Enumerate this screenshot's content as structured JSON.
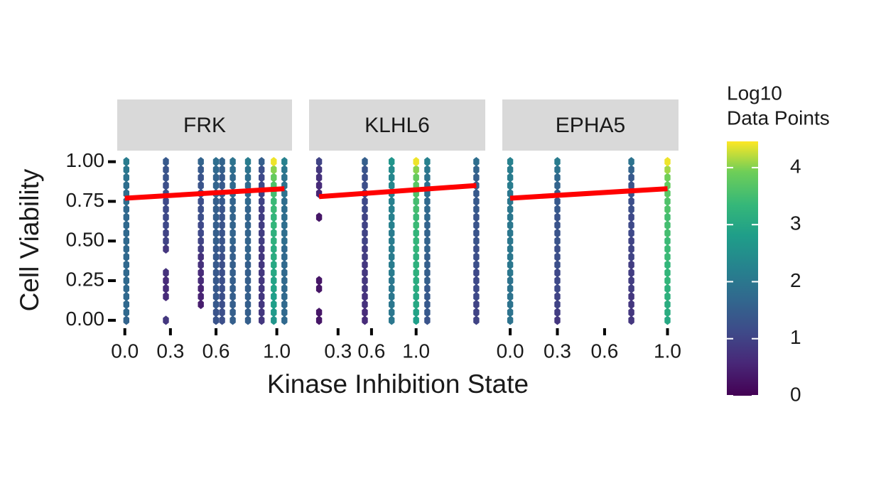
{
  "chart_data": [
    {
      "type": "hexbin",
      "title": "FRK",
      "xlim": [
        -0.05,
        1.1
      ],
      "ylim": [
        -0.05,
        1.07
      ],
      "xticks": [
        {
          "value": 0,
          "label": "0.0"
        },
        0.3,
        0.6,
        {
          "value": 1,
          "label": "1.0"
        }
      ],
      "yticks": [
        {
          "value": 0,
          "label": "0.00"
        },
        {
          "value": 0.25,
          "label": "0.25"
        },
        {
          "value": 0.5,
          "label": "0.50"
        },
        {
          "value": 0.75,
          "label": "0.75"
        },
        {
          "value": 1,
          "label": "1.00"
        }
      ],
      "y_bins": [
        0,
        0.05,
        0.1,
        0.15,
        0.2,
        0.25,
        0.3,
        0.35,
        0.4,
        0.45,
        0.5,
        0.55,
        0.6,
        0.65,
        0.7,
        0.75,
        0.8,
        0.85,
        0.9,
        0.95,
        1
      ],
      "columns": [
        {
          "x": 0.01,
          "values": [
            1.6,
            1.7,
            1.7,
            1.7,
            1.7,
            1.7,
            1.7,
            1.7,
            1.7,
            1.7,
            1.7,
            1.7,
            1.7,
            1.7,
            1.7,
            1.8,
            1.8,
            1.8,
            1.9,
            2.0,
            2.1
          ]
        },
        {
          "x": 0.27,
          "values": [
            0.8,
            null,
            null,
            0.6,
            0.6,
            0.6,
            0.7,
            null,
            null,
            0.8,
            1.0,
            1.0,
            1.1,
            1.1,
            1.1,
            1.1,
            1.2,
            1.2,
            1.3,
            1.3,
            1.4
          ]
        },
        {
          "x": 0.5,
          "values": [
            null,
            null,
            0.4,
            0.5,
            0.5,
            0.6,
            0.6,
            0.7,
            0.7,
            0.9,
            1.0,
            1.1,
            1.1,
            1.2,
            1.2,
            1.2,
            1.3,
            1.3,
            1.3,
            1.4,
            1.6
          ]
        },
        {
          "x": 0.6,
          "values": [
            1.3,
            1.3,
            1.4,
            1.4,
            1.4,
            1.4,
            1.4,
            1.4,
            1.4,
            1.4,
            1.5,
            1.5,
            1.5,
            1.5,
            1.5,
            1.5,
            1.6,
            1.6,
            1.6,
            1.7,
            1.8
          ]
        },
        {
          "x": 0.64,
          "values": [
            1.2,
            1.2,
            1.2,
            1.2,
            1.2,
            1.2,
            1.2,
            1.2,
            1.2,
            1.3,
            1.3,
            1.3,
            1.3,
            1.3,
            1.3,
            1.4,
            1.4,
            1.4,
            1.4,
            1.5,
            1.6
          ]
        },
        {
          "x": 0.71,
          "values": [
            1.5,
            1.5,
            1.5,
            1.5,
            1.5,
            1.5,
            1.5,
            1.5,
            1.5,
            1.5,
            1.6,
            1.6,
            1.6,
            1.6,
            1.6,
            1.6,
            1.7,
            1.7,
            1.7,
            1.8,
            1.9
          ]
        },
        {
          "x": 0.81,
          "values": [
            1.5,
            1.5,
            1.5,
            1.5,
            1.5,
            1.5,
            1.5,
            1.5,
            1.6,
            1.6,
            1.6,
            1.6,
            1.6,
            1.6,
            1.6,
            1.7,
            1.7,
            1.7,
            1.8,
            1.9,
            2.1
          ]
        },
        {
          "x": 0.9,
          "values": [
            0.8,
            0.8,
            0.8,
            0.8,
            0.8,
            0.8,
            0.8,
            0.8,
            0.8,
            0.8,
            0.9,
            0.9,
            0.9,
            0.9,
            0.9,
            1.0,
            1.0,
            1.1,
            1.1,
            1.2,
            1.5
          ]
        },
        {
          "x": 0.98,
          "values": [
            2.6,
            2.7,
            2.8,
            2.8,
            2.9,
            2.9,
            3.0,
            3.0,
            3.1,
            3.1,
            3.2,
            3.2,
            3.3,
            3.3,
            3.4,
            3.4,
            3.5,
            3.6,
            3.8,
            4.0,
            4.4
          ]
        },
        {
          "x": 1.05,
          "values": [
            1.7,
            1.7,
            1.7,
            1.7,
            1.7,
            1.7,
            1.7,
            1.7,
            1.7,
            1.7,
            1.8,
            1.8,
            1.8,
            1.8,
            1.8,
            1.8,
            1.9,
            1.9,
            1.9,
            2.0,
            2.2
          ]
        }
      ],
      "trend": {
        "color": "#ff0000",
        "x": [
          0,
          1.05
        ],
        "y": [
          0.77,
          0.83
        ]
      }
    },
    {
      "type": "hexbin",
      "title": "KLHL6",
      "xlim": [
        0.04,
        1.62
      ],
      "ylim": [
        -0.05,
        1.07
      ],
      "xticks": [
        0.3,
        0.6,
        {
          "value": 1,
          "label": "1.0"
        }
      ],
      "y_bins": [
        0,
        0.05,
        0.1,
        0.15,
        0.2,
        0.25,
        0.3,
        0.35,
        0.4,
        0.45,
        0.5,
        0.55,
        0.6,
        0.65,
        0.7,
        0.75,
        0.8,
        0.85,
        0.9,
        0.95,
        1
      ],
      "columns": [
        {
          "x": 0.13,
          "values": [
            0.3,
            0.3,
            null,
            null,
            0.3,
            0.3,
            null,
            null,
            null,
            null,
            null,
            null,
            null,
            0.3,
            null,
            null,
            0.5,
            0.6,
            0.7,
            0.8,
            1.0
          ]
        },
        {
          "x": 0.54,
          "values": [
            0.6,
            0.6,
            0.7,
            0.7,
            0.8,
            0.8,
            0.8,
            0.8,
            0.9,
            0.9,
            1.0,
            1.0,
            1.0,
            1.0,
            1.1,
            1.1,
            1.1,
            1.2,
            1.2,
            1.3,
            1.5
          ]
        },
        {
          "x": 0.78,
          "values": [
            2.0,
            2.0,
            2.0,
            2.0,
            2.0,
            2.0,
            2.1,
            2.1,
            2.1,
            2.1,
            2.1,
            2.1,
            2.2,
            2.2,
            2.2,
            2.2,
            2.2,
            2.3,
            2.3,
            2.4,
            2.6
          ]
        },
        {
          "x": 1.0,
          "values": [
            2.8,
            2.9,
            3.0,
            3.0,
            3.1,
            3.1,
            3.2,
            3.2,
            3.2,
            3.3,
            3.3,
            3.3,
            3.4,
            3.4,
            3.5,
            3.5,
            3.6,
            3.7,
            3.8,
            4.0,
            4.4
          ]
        },
        {
          "x": 1.1,
          "values": [
            1.3,
            1.4,
            1.4,
            1.4,
            1.4,
            1.5,
            1.5,
            1.5,
            1.5,
            1.6,
            1.6,
            1.6,
            1.6,
            1.7,
            1.7,
            1.7,
            1.8,
            1.8,
            1.9,
            2.0,
            2.2
          ]
        },
        {
          "x": 1.54,
          "values": [
            1.0,
            1.0,
            1.0,
            1.1,
            1.1,
            1.1,
            1.1,
            1.2,
            1.2,
            1.2,
            1.3,
            1.3,
            1.3,
            1.3,
            1.4,
            1.4,
            1.4,
            1.5,
            1.5,
            1.6,
            1.8
          ]
        }
      ],
      "trend": {
        "color": "#ff0000",
        "x": [
          0.13,
          1.54
        ],
        "y": [
          0.78,
          0.85
        ]
      }
    },
    {
      "type": "hexbin",
      "title": "EPHA5",
      "xlim": [
        -0.05,
        1.07
      ],
      "ylim": [
        -0.05,
        1.07
      ],
      "xticks": [
        {
          "value": 0,
          "label": "0.0"
        },
        0.3,
        0.6,
        {
          "value": 1,
          "label": "1.0"
        }
      ],
      "y_bins": [
        0,
        0.05,
        0.1,
        0.15,
        0.2,
        0.25,
        0.3,
        0.35,
        0.4,
        0.45,
        0.5,
        0.55,
        0.6,
        0.65,
        0.7,
        0.75,
        0.8,
        0.85,
        0.9,
        0.95,
        1
      ],
      "columns": [
        {
          "x": 0,
          "values": [
            1.9,
            1.9,
            1.9,
            1.9,
            1.9,
            1.9,
            2.0,
            2.0,
            2.0,
            2.0,
            2.0,
            2.0,
            2.0,
            2.0,
            2.0,
            2.0,
            2.0,
            2.1,
            2.1,
            2.1,
            2.2
          ]
        },
        {
          "x": 0.3,
          "values": [
            0.8,
            0.9,
            1.0,
            1.0,
            1.1,
            1.1,
            1.1,
            1.2,
            1.2,
            1.2,
            1.3,
            1.3,
            1.3,
            1.3,
            1.4,
            1.4,
            1.5,
            1.6,
            1.7,
            1.9,
            2.1
          ]
        },
        {
          "x": 0.77,
          "values": [
            0.8,
            0.8,
            0.8,
            0.8,
            0.9,
            0.9,
            0.9,
            0.9,
            1.0,
            1.0,
            1.0,
            1.1,
            1.1,
            1.1,
            1.2,
            1.2,
            1.3,
            1.3,
            1.4,
            1.6,
            1.9
          ]
        },
        {
          "x": 1.0,
          "values": [
            3.0,
            3.1,
            3.1,
            3.2,
            3.2,
            3.3,
            3.3,
            3.3,
            3.4,
            3.4,
            3.4,
            3.5,
            3.5,
            3.5,
            3.6,
            3.6,
            3.7,
            3.8,
            3.9,
            4.1,
            4.4
          ]
        }
      ],
      "trend": {
        "color": "#ff0000",
        "x": [
          0,
          1.0
        ],
        "y": [
          0.77,
          0.83
        ]
      }
    }
  ],
  "x_label": "Kinase Inhibition State",
  "y_label": "Cell Viability",
  "colorbar": {
    "title": [
      "Log10",
      "Data Points"
    ],
    "lim": [
      0,
      4.46
    ],
    "ticks": [
      0,
      1,
      2,
      3,
      4
    ]
  }
}
